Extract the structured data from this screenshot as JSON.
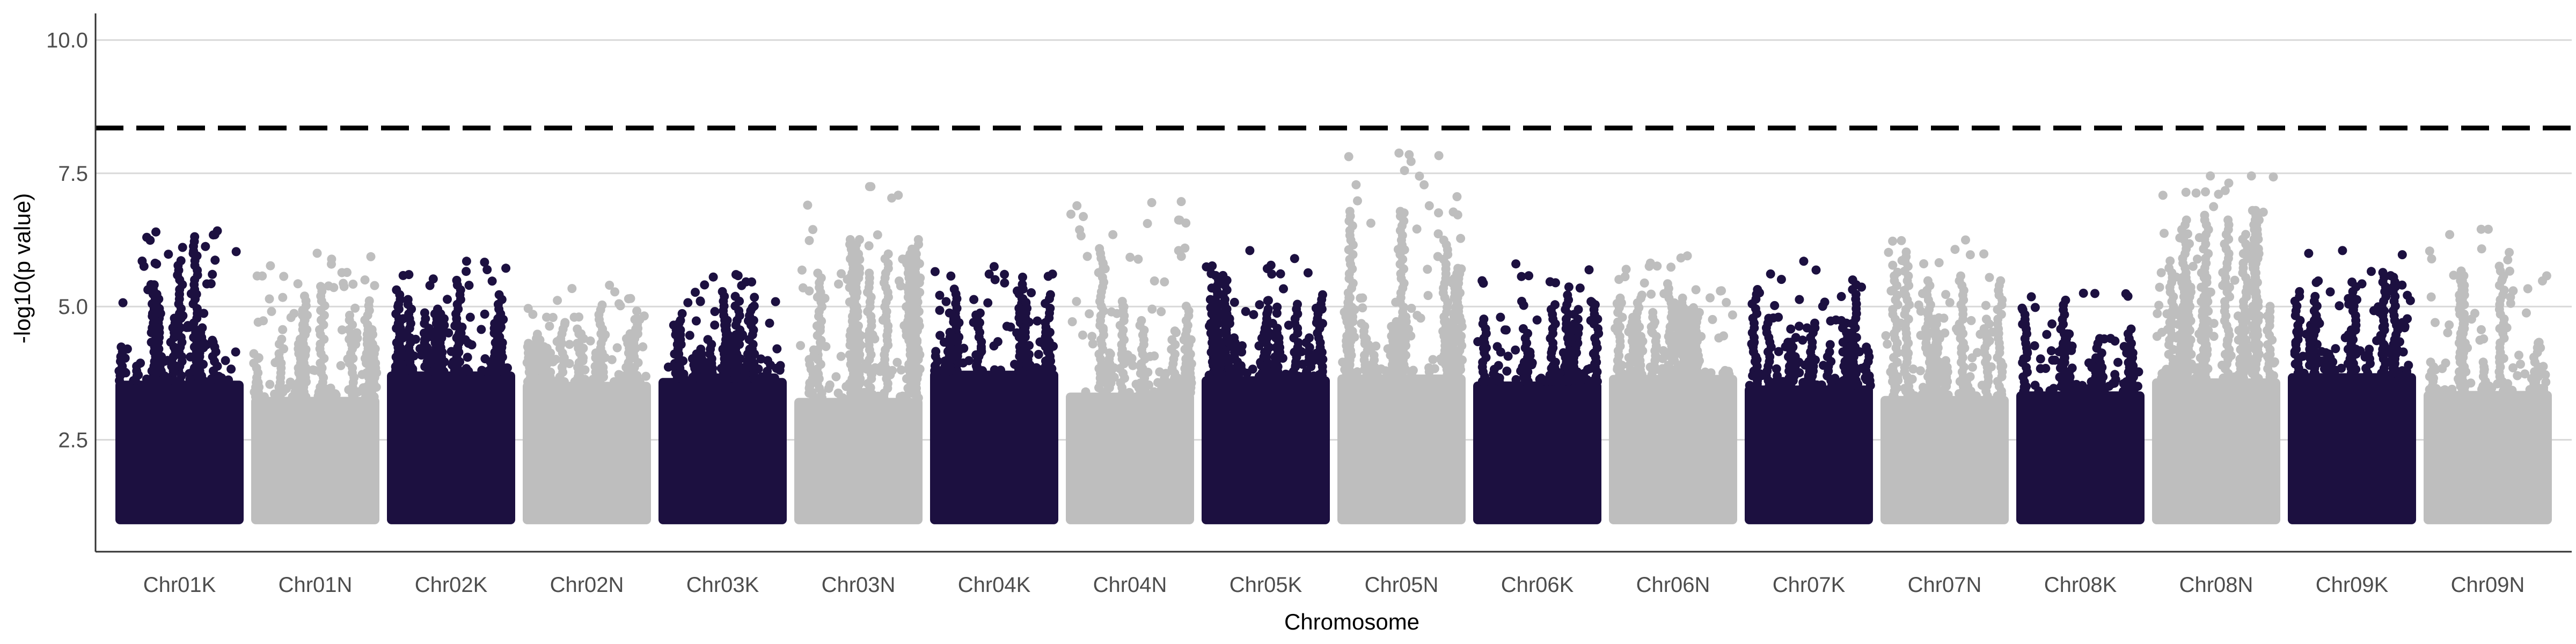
{
  "chart_data": {
    "type": "scatter",
    "title": "",
    "xlabel": "Chromosome",
    "ylabel": "-log10(p value)",
    "ylim": [
      0.4,
      10.5
    ],
    "yticks": [
      2.5,
      5.0,
      7.5,
      10.0
    ],
    "ytick_labels": [
      "2.5",
      "5.0",
      "7.5",
      "10.0"
    ],
    "threshold": 8.35,
    "threshold_style": "dashed",
    "grid": "horizontal major",
    "legend": "none",
    "colors": [
      "#1c1040",
      "#bebebe"
    ],
    "categories": [
      "Chr01K",
      "Chr01N",
      "Chr02K",
      "Chr02N",
      "Chr03K",
      "Chr03N",
      "Chr04K",
      "Chr04N",
      "Chr05K",
      "Chr05N",
      "Chr06K",
      "Chr06N",
      "Chr07K",
      "Chr07N",
      "Chr08K",
      "Chr08N",
      "Chr09K",
      "Chr09N"
    ],
    "top_values": [
      6.4,
      6.0,
      5.85,
      5.4,
      5.6,
      7.25,
      5.75,
      6.95,
      6.05,
      7.85,
      5.8,
      5.95,
      5.85,
      6.25,
      5.25,
      7.45,
      6.05,
      6.45
    ],
    "notable_points": [
      {
        "category": "Chr01K",
        "y": 6.42
      },
      {
        "category": "Chr03N",
        "y": 7.25
      },
      {
        "category": "Chr04N",
        "y": 6.97
      },
      {
        "category": "Chr05N",
        "y": 7.88
      },
      {
        "category": "Chr05N",
        "y": 6.72
      },
      {
        "category": "Chr08N",
        "y": 7.45
      },
      {
        "category": "Chr09N",
        "y": 6.45
      },
      {
        "category": "Chr09N",
        "y": 6.35
      }
    ]
  }
}
